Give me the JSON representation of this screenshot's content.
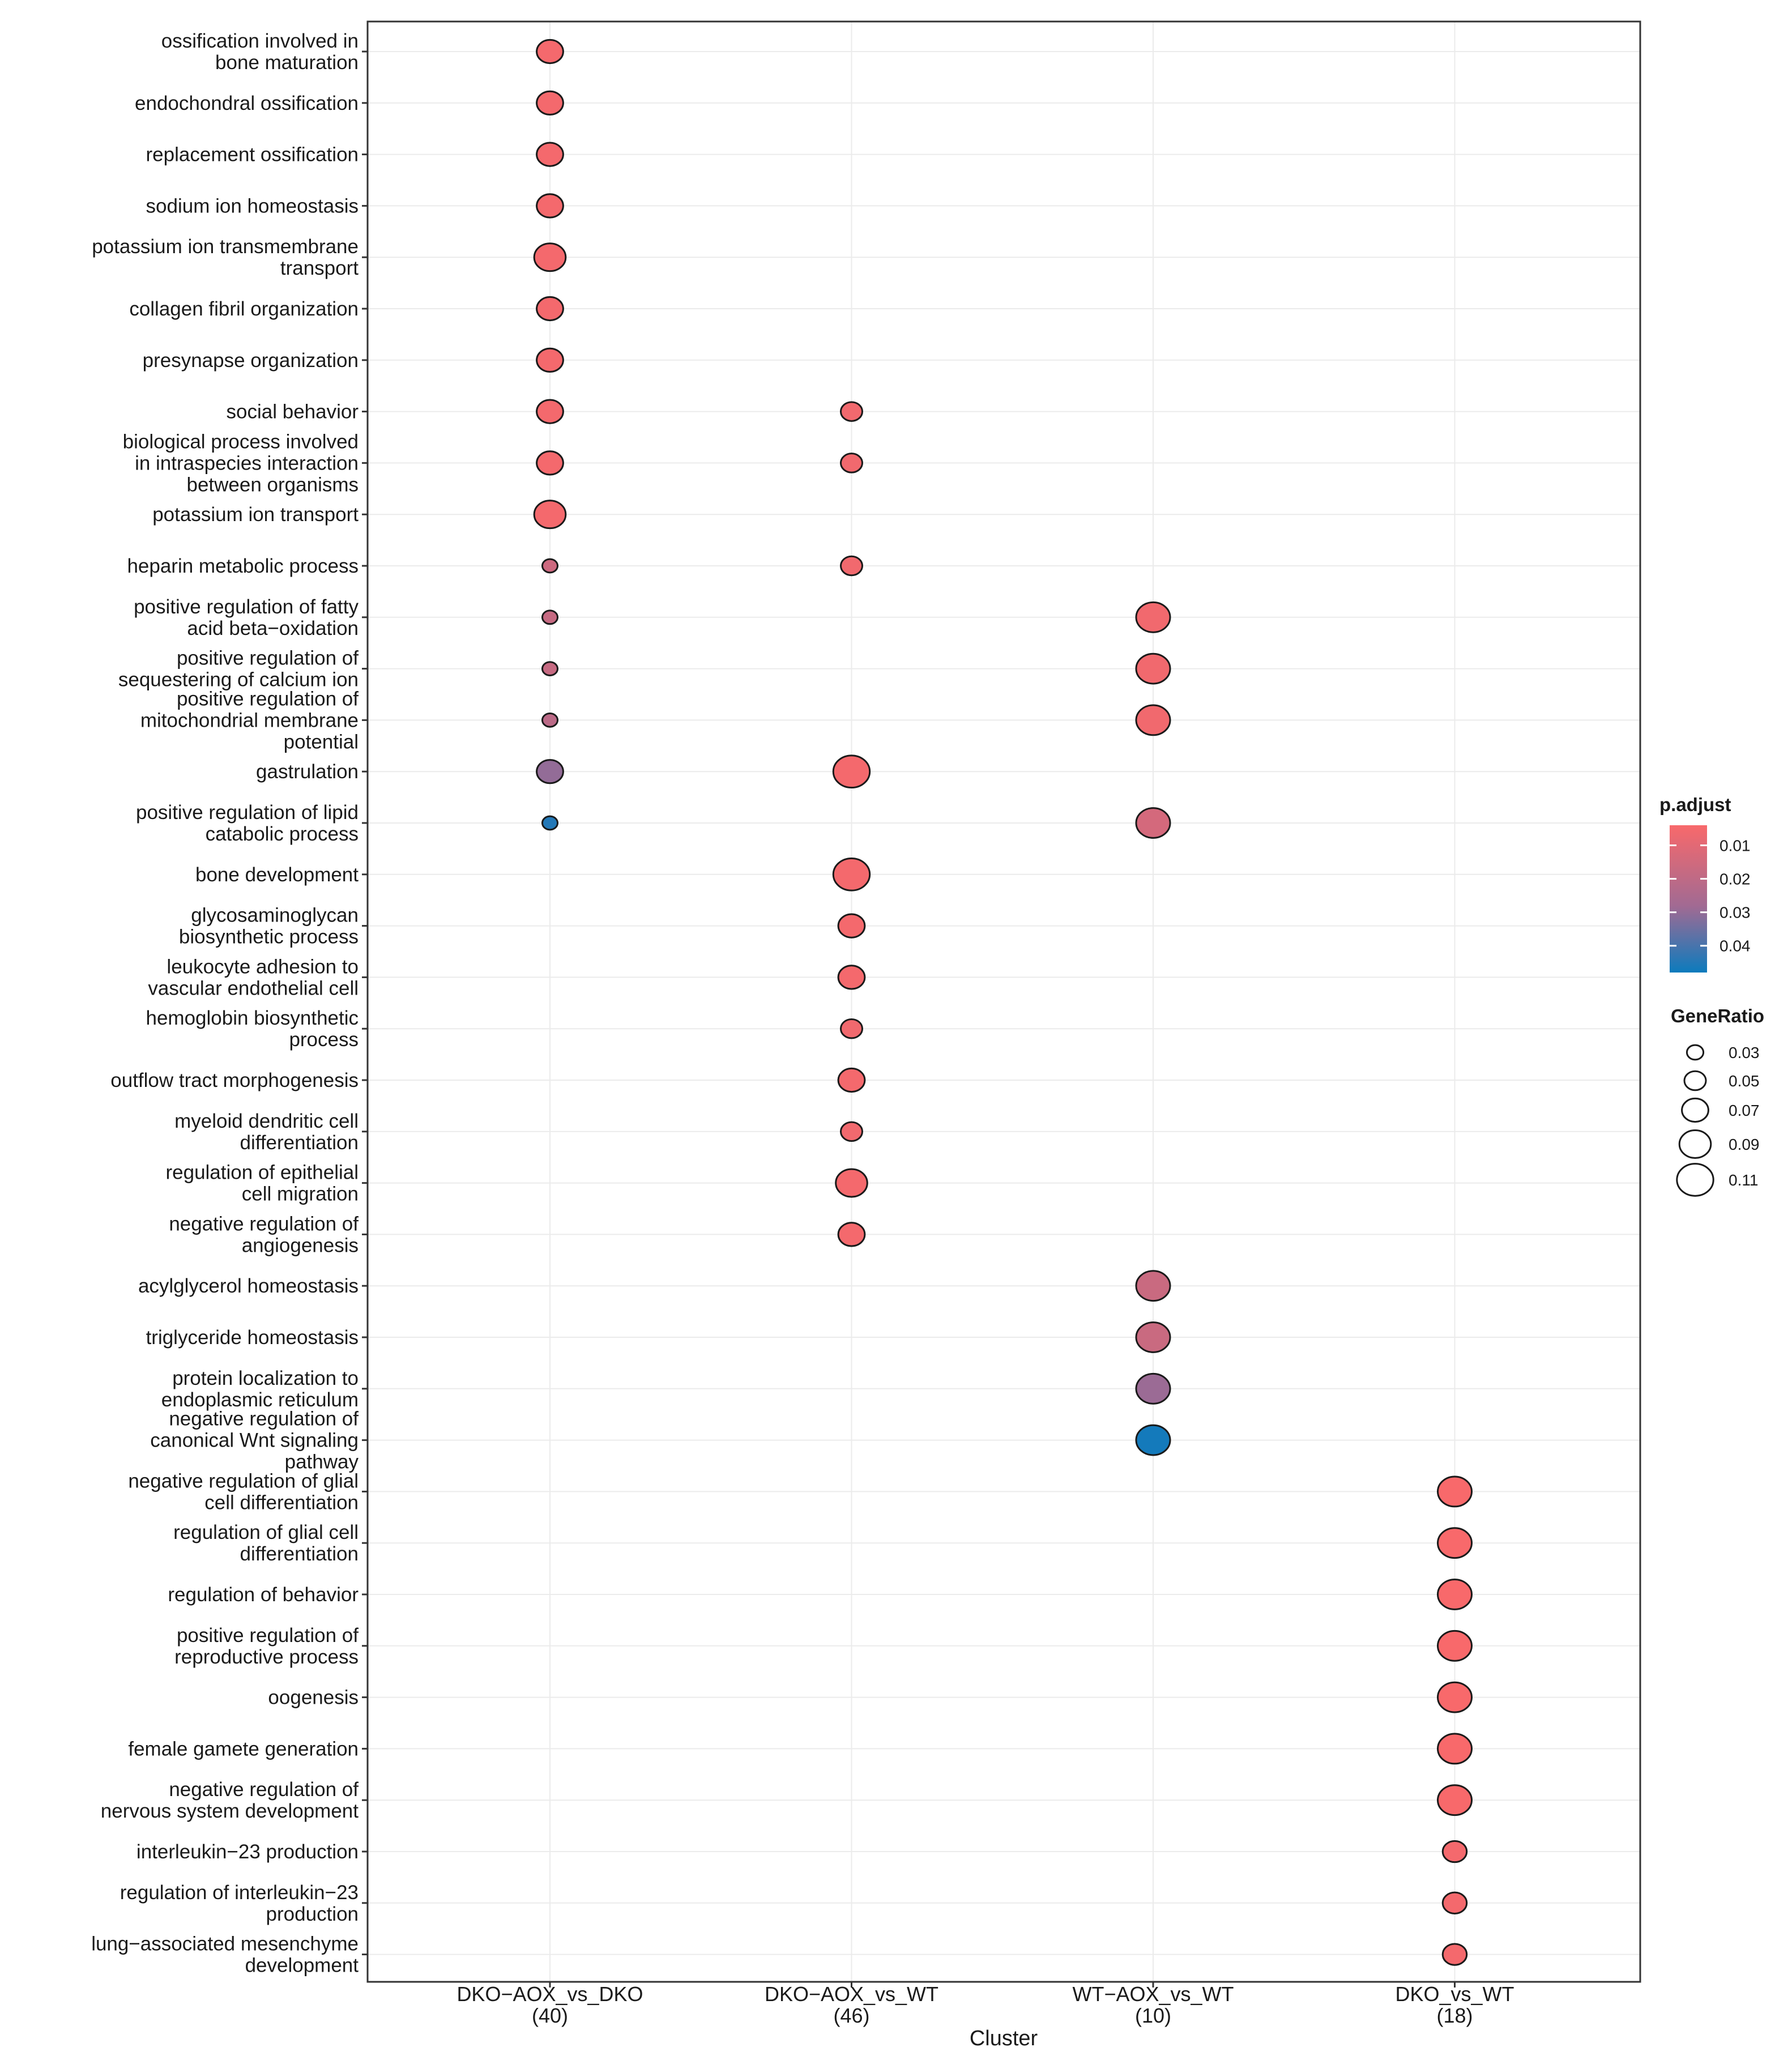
{
  "chart_data": {
    "type": "scatter",
    "subtype": "dotplot",
    "xlabel": "Cluster",
    "ylabel": "",
    "clusters": [
      {
        "name": "DKO−AOX_vs_DKO",
        "count": "(40)"
      },
      {
        "name": "DKO−AOX_vs_WT",
        "count": "(46)"
      },
      {
        "name": "WT−AOX_vs_WT",
        "count": "(10)"
      },
      {
        "name": "DKO_vs_WT",
        "count": "(18)"
      }
    ],
    "terms": [
      {
        "line1": "ossification involved in",
        "line2": "bone maturation"
      },
      {
        "line1": "endochondral ossification"
      },
      {
        "line1": "replacement ossification"
      },
      {
        "line1": "sodium ion homeostasis"
      },
      {
        "line1": "potassium ion transmembrane",
        "line2": "transport"
      },
      {
        "line1": "collagen fibril organization"
      },
      {
        "line1": "presynapse organization"
      },
      {
        "line1": "social behavior"
      },
      {
        "line1": "biological process involved",
        "line2": "in intraspecies interaction",
        "line3": "between organisms"
      },
      {
        "line1": "potassium ion transport"
      },
      {
        "line1": "heparin metabolic process"
      },
      {
        "line1": "positive regulation of fatty",
        "line2": "acid beta−oxidation"
      },
      {
        "line1": "positive regulation of",
        "line2": "sequestering of calcium ion"
      },
      {
        "line1": "positive regulation of",
        "line2": "mitochondrial membrane",
        "line3": "potential"
      },
      {
        "line1": "gastrulation"
      },
      {
        "line1": "positive regulation of lipid",
        "line2": "catabolic process"
      },
      {
        "line1": "bone development"
      },
      {
        "line1": "glycosaminoglycan",
        "line2": "biosynthetic process"
      },
      {
        "line1": "leukocyte adhesion to",
        "line2": "vascular endothelial cell"
      },
      {
        "line1": "hemoglobin biosynthetic",
        "line2": "process"
      },
      {
        "line1": "outflow tract morphogenesis"
      },
      {
        "line1": "myeloid dendritic cell",
        "line2": "differentiation"
      },
      {
        "line1": "regulation of epithelial",
        "line2": "cell migration"
      },
      {
        "line1": "negative regulation of",
        "line2": "angiogenesis"
      },
      {
        "line1": "acylglycerol homeostasis"
      },
      {
        "line1": "triglyceride homeostasis"
      },
      {
        "line1": "protein localization to",
        "line2": "endoplasmic reticulum"
      },
      {
        "line1": "negative regulation of",
        "line2": "canonical Wnt signaling",
        "line3": "pathway"
      },
      {
        "line1": "negative regulation of glial",
        "line2": "cell differentiation"
      },
      {
        "line1": "regulation of glial cell",
        "line2": "differentiation"
      },
      {
        "line1": "regulation of behavior"
      },
      {
        "line1": "positive regulation of",
        "line2": "reproductive process"
      },
      {
        "line1": "oogenesis"
      },
      {
        "line1": "female gamete generation"
      },
      {
        "line1": "negative regulation of",
        "line2": "nervous system development"
      },
      {
        "line1": "interleukin−23 production"
      },
      {
        "line1": "regulation of interleukin−23",
        "line2": "production"
      },
      {
        "line1": "lung−associated mesenchyme",
        "line2": "development"
      }
    ],
    "points": [
      {
        "cluster": 0,
        "term": 0,
        "gene_ratio": 0.07,
        "p_adjust": 0.005
      },
      {
        "cluster": 0,
        "term": 1,
        "gene_ratio": 0.07,
        "p_adjust": 0.005
      },
      {
        "cluster": 0,
        "term": 2,
        "gene_ratio": 0.07,
        "p_adjust": 0.005
      },
      {
        "cluster": 0,
        "term": 3,
        "gene_ratio": 0.07,
        "p_adjust": 0.005
      },
      {
        "cluster": 0,
        "term": 4,
        "gene_ratio": 0.09,
        "p_adjust": 0.005
      },
      {
        "cluster": 0,
        "term": 5,
        "gene_ratio": 0.07,
        "p_adjust": 0.005
      },
      {
        "cluster": 0,
        "term": 6,
        "gene_ratio": 0.07,
        "p_adjust": 0.005
      },
      {
        "cluster": 0,
        "term": 7,
        "gene_ratio": 0.07,
        "p_adjust": 0.005
      },
      {
        "cluster": 0,
        "term": 8,
        "gene_ratio": 0.07,
        "p_adjust": 0.005
      },
      {
        "cluster": 0,
        "term": 9,
        "gene_ratio": 0.09,
        "p_adjust": 0.005
      },
      {
        "cluster": 0,
        "term": 10,
        "gene_ratio": 0.025,
        "p_adjust": 0.016
      },
      {
        "cluster": 0,
        "term": 11,
        "gene_ratio": 0.025,
        "p_adjust": 0.018
      },
      {
        "cluster": 0,
        "term": 12,
        "gene_ratio": 0.025,
        "p_adjust": 0.018
      },
      {
        "cluster": 0,
        "term": 13,
        "gene_ratio": 0.025,
        "p_adjust": 0.021
      },
      {
        "cluster": 0,
        "term": 14,
        "gene_ratio": 0.07,
        "p_adjust": 0.03
      },
      {
        "cluster": 0,
        "term": 15,
        "gene_ratio": 0.025,
        "p_adjust": 0.045
      },
      {
        "cluster": 1,
        "term": 7,
        "gene_ratio": 0.05,
        "p_adjust": 0.006
      },
      {
        "cluster": 1,
        "term": 8,
        "gene_ratio": 0.05,
        "p_adjust": 0.006
      },
      {
        "cluster": 1,
        "term": 10,
        "gene_ratio": 0.05,
        "p_adjust": 0.006
      },
      {
        "cluster": 1,
        "term": 14,
        "gene_ratio": 0.11,
        "p_adjust": 0.005
      },
      {
        "cluster": 1,
        "term": 16,
        "gene_ratio": 0.11,
        "p_adjust": 0.005
      },
      {
        "cluster": 1,
        "term": 17,
        "gene_ratio": 0.07,
        "p_adjust": 0.005
      },
      {
        "cluster": 1,
        "term": 18,
        "gene_ratio": 0.07,
        "p_adjust": 0.005
      },
      {
        "cluster": 1,
        "term": 19,
        "gene_ratio": 0.05,
        "p_adjust": 0.006
      },
      {
        "cluster": 1,
        "term": 20,
        "gene_ratio": 0.07,
        "p_adjust": 0.005
      },
      {
        "cluster": 1,
        "term": 21,
        "gene_ratio": 0.05,
        "p_adjust": 0.006
      },
      {
        "cluster": 1,
        "term": 22,
        "gene_ratio": 0.09,
        "p_adjust": 0.005
      },
      {
        "cluster": 1,
        "term": 23,
        "gene_ratio": 0.07,
        "p_adjust": 0.005
      },
      {
        "cluster": 2,
        "term": 11,
        "gene_ratio": 0.1,
        "p_adjust": 0.006
      },
      {
        "cluster": 2,
        "term": 12,
        "gene_ratio": 0.1,
        "p_adjust": 0.006
      },
      {
        "cluster": 2,
        "term": 13,
        "gene_ratio": 0.1,
        "p_adjust": 0.006
      },
      {
        "cluster": 2,
        "term": 15,
        "gene_ratio": 0.1,
        "p_adjust": 0.014
      },
      {
        "cluster": 2,
        "term": 24,
        "gene_ratio": 0.1,
        "p_adjust": 0.017
      },
      {
        "cluster": 2,
        "term": 25,
        "gene_ratio": 0.1,
        "p_adjust": 0.017
      },
      {
        "cluster": 2,
        "term": 26,
        "gene_ratio": 0.1,
        "p_adjust": 0.029
      },
      {
        "cluster": 2,
        "term": 27,
        "gene_ratio": 0.1,
        "p_adjust": 0.047
      },
      {
        "cluster": 3,
        "term": 28,
        "gene_ratio": 0.1,
        "p_adjust": 0.004
      },
      {
        "cluster": 3,
        "term": 29,
        "gene_ratio": 0.1,
        "p_adjust": 0.004
      },
      {
        "cluster": 3,
        "term": 30,
        "gene_ratio": 0.1,
        "p_adjust": 0.004
      },
      {
        "cluster": 3,
        "term": 31,
        "gene_ratio": 0.1,
        "p_adjust": 0.004
      },
      {
        "cluster": 3,
        "term": 32,
        "gene_ratio": 0.1,
        "p_adjust": 0.004
      },
      {
        "cluster": 3,
        "term": 33,
        "gene_ratio": 0.1,
        "p_adjust": 0.004
      },
      {
        "cluster": 3,
        "term": 34,
        "gene_ratio": 0.1,
        "p_adjust": 0.004
      },
      {
        "cluster": 3,
        "term": 35,
        "gene_ratio": 0.06,
        "p_adjust": 0.005
      },
      {
        "cluster": 3,
        "term": 36,
        "gene_ratio": 0.06,
        "p_adjust": 0.005
      },
      {
        "cluster": 3,
        "term": 37,
        "gene_ratio": 0.06,
        "p_adjust": 0.005
      }
    ],
    "color_legend": {
      "title": "p.adjust",
      "ticks": [
        0.01,
        0.02,
        0.03,
        0.04
      ],
      "tick_labels": [
        "0.01",
        "0.02",
        "0.03",
        "0.04"
      ],
      "range": [
        0.004,
        0.048
      ],
      "low_color": "#F8696B",
      "mid_color": "#A16A93",
      "high_color": "#0C7BBD"
    },
    "size_legend": {
      "title": "GeneRatio",
      "values": [
        0.03,
        0.05,
        0.07,
        0.09,
        0.11
      ],
      "labels": [
        "0.03",
        "0.05",
        "0.07",
        "0.09",
        "0.11"
      ]
    },
    "grid": true,
    "legend_position": "right"
  }
}
